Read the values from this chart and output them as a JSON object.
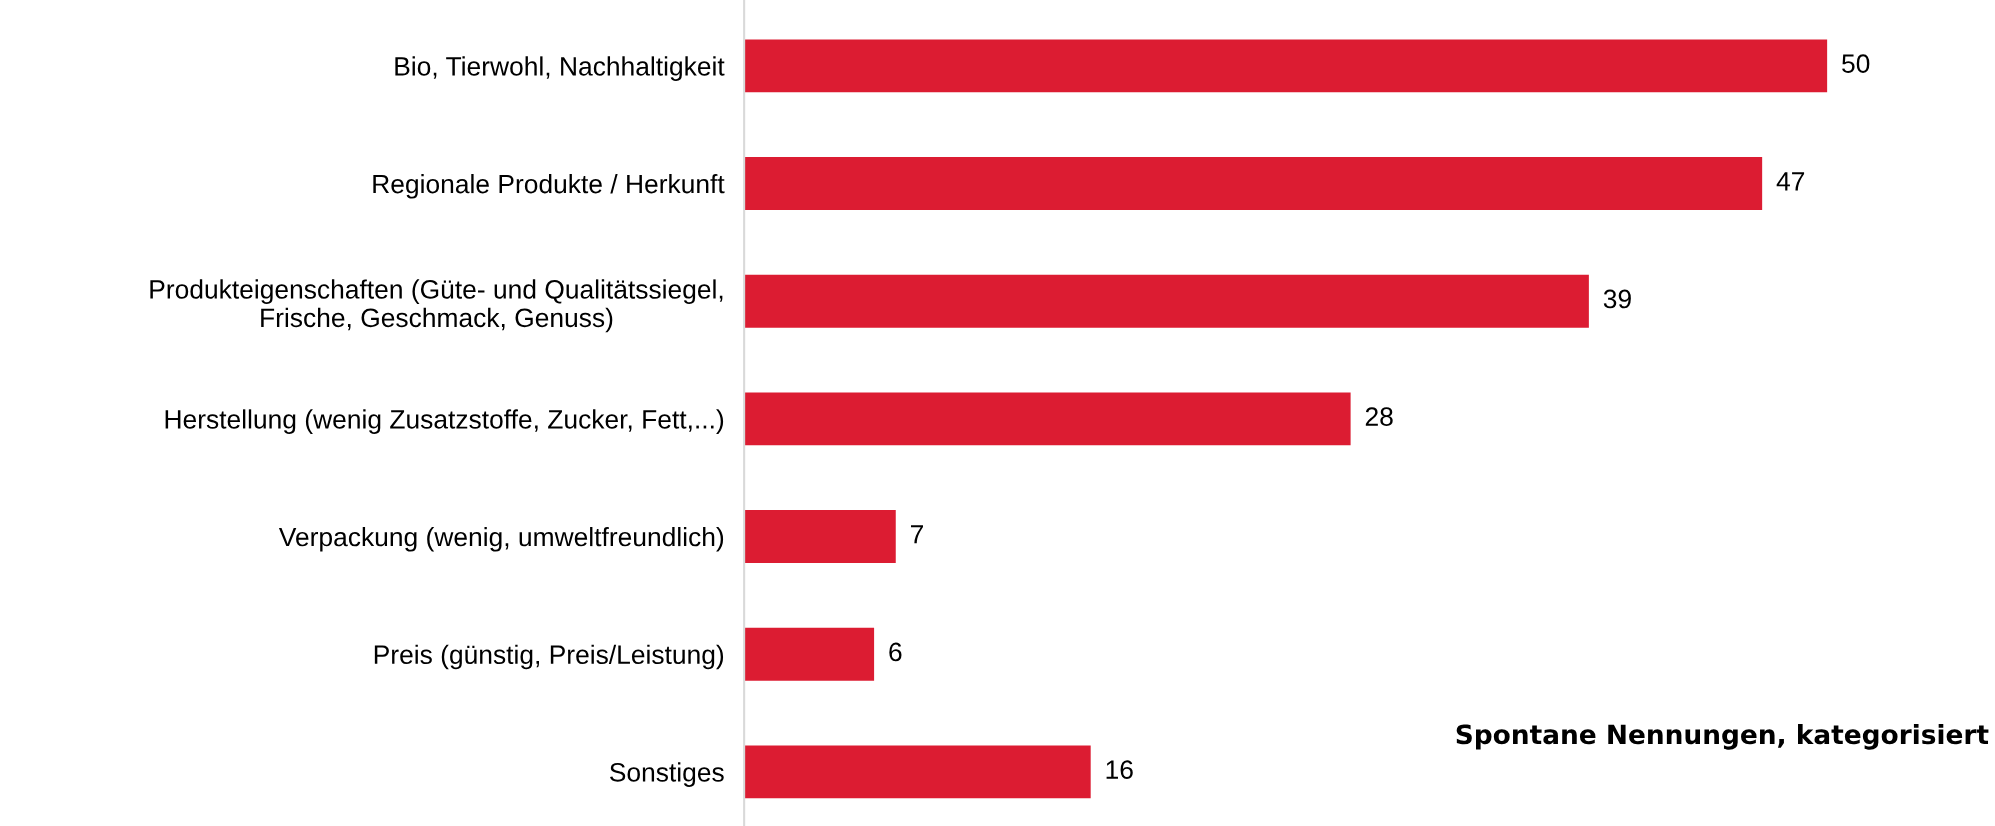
{
  "chart_data": {
    "type": "bar",
    "orientation": "horizontal",
    "categories": [
      "Bio, Tierwohl, Nachhaltigkeit",
      "Regionale Produkte / Herkunft",
      "Produkteigenschaften (Güte- und Qualitätssiegel,\nFrische, Geschmack, Genuss)",
      "Herstellung (wenig Zusatzstoffe, Zucker, Fett,...)",
      "Verpackung (wenig, umweltfreundlich)",
      "Preis (günstig, Preis/Leistung)",
      "Sonstiges"
    ],
    "values": [
      50,
      47,
      39,
      28,
      7,
      6,
      16
    ],
    "color": "#dc1c32",
    "data_labels": true,
    "grid": false,
    "legend": false,
    "annotations": [
      "Spontane Nennungen, kategorisiert"
    ]
  }
}
